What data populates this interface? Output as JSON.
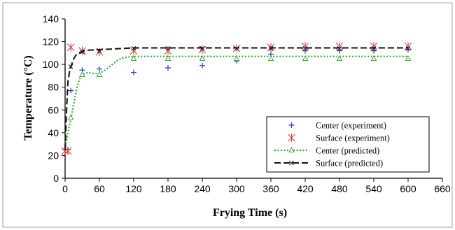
{
  "chart_data": {
    "type": "scatter",
    "title": "",
    "xlabel": "Frying Time (s)",
    "ylabel": "Temperature (°C)",
    "xlim": [
      0,
      660
    ],
    "ylim": [
      0,
      140
    ],
    "xticks": [
      "0",
      "60",
      "120",
      "180",
      "240",
      "300",
      "360",
      "420",
      "480",
      "540",
      "600",
      "660"
    ],
    "yticks": [
      "0",
      "20",
      "40",
      "60",
      "80",
      "100",
      "120",
      "140"
    ],
    "grid": false,
    "legend_position": "bottom-right",
    "series": [
      {
        "name": "Center (experiment)",
        "kind": "markers",
        "marker": "plus",
        "color": "#1f3fd8",
        "x": [
          0,
          5,
          10,
          30,
          60,
          120,
          180,
          240,
          300,
          360,
          420,
          480,
          540,
          600
        ],
        "y": [
          25,
          25,
          77,
          95,
          96,
          93,
          97,
          99,
          103,
          109,
          112,
          112,
          112,
          113
        ]
      },
      {
        "name": "Surface (experiment)",
        "kind": "markers",
        "marker": "asterisk",
        "color": "#e04040",
        "x": [
          0,
          5,
          10,
          30,
          60,
          120,
          180,
          240,
          300,
          360,
          420,
          480,
          540,
          600
        ],
        "y": [
          24,
          24,
          115,
          112,
          111,
          112,
          112,
          113,
          114,
          115,
          116,
          116,
          116,
          116
        ]
      },
      {
        "name": "Center (predicted)",
        "kind": "line",
        "line_style": "dotted",
        "marker": "triangle",
        "color": "#2fa82f",
        "x": [
          0,
          2,
          5,
          8,
          10,
          15,
          20,
          25,
          30,
          40,
          50,
          60,
          70,
          80,
          90,
          100,
          110,
          120,
          140,
          180,
          240,
          300,
          360,
          420,
          480,
          540,
          600
        ],
        "y": [
          25,
          32,
          40,
          47,
          52,
          65,
          78,
          87,
          91,
          93,
          92,
          92,
          95,
          99,
          103,
          105.5,
          106.5,
          107,
          107,
          107,
          107,
          107,
          107,
          107,
          107,
          107,
          107
        ],
        "marker_x": [
          10,
          30,
          60,
          120,
          180,
          240,
          300,
          360,
          420,
          480,
          540,
          600
        ],
        "marker_y": [
          53,
          91,
          91,
          105,
          105,
          105,
          105,
          105,
          105,
          105,
          105,
          105
        ]
      },
      {
        "name": "Surface (predicted)",
        "kind": "line",
        "line_style": "dashed",
        "marker": "x",
        "color": "#111111",
        "x": [
          0,
          1,
          3,
          5,
          8,
          10,
          15,
          20,
          30,
          40,
          60,
          80,
          100,
          120,
          180,
          240,
          300,
          360,
          420,
          480,
          540,
          600
        ],
        "y": [
          25,
          40,
          65,
          85,
          94,
          98,
          105,
          109,
          111.5,
          112.5,
          113,
          113.5,
          114,
          114.5,
          114.5,
          114.5,
          114.5,
          114.5,
          114.5,
          114.5,
          114.5,
          114.5
        ],
        "marker_x": [
          10,
          30,
          60,
          120,
          180,
          240,
          300,
          360,
          420,
          480,
          540,
          600
        ],
        "marker_y": [
          98,
          111,
          112,
          114,
          114,
          114,
          114,
          114,
          114,
          114,
          114,
          114
        ]
      }
    ]
  }
}
